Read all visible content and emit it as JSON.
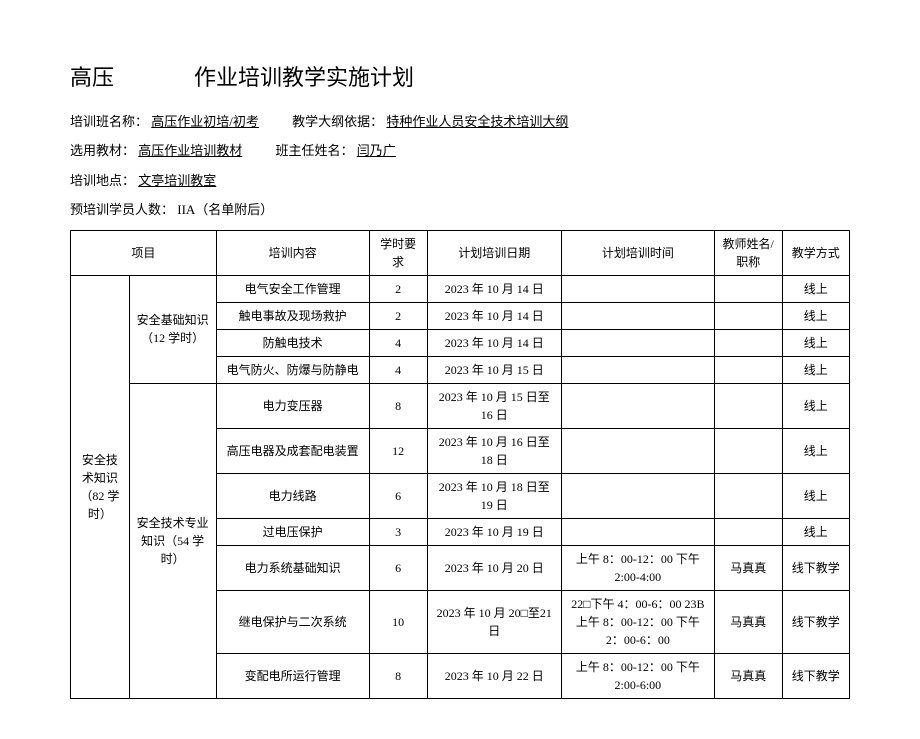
{
  "title": {
    "left": "高压",
    "main": "作业培训教学实施计划"
  },
  "info": {
    "class_label": "培训班名称：",
    "class_value": "高压作业初培/初考",
    "outline_label": "教学大纲依据：",
    "outline_value": "特种作业人员安全技术培训大纲",
    "material_label": "选用教材：",
    "material_value": "高压作业培训教材",
    "head_label": "班主任姓名：",
    "head_value": "闫乃广",
    "location_label": "培训地点：",
    "location_value": "文亭培训教室",
    "trainee_label": "预培训学员人数：",
    "trainee_value": "IIA（名单附后）"
  },
  "headers": {
    "project": "项目",
    "content": "培训内容",
    "hours": "学时要求",
    "date": "计划培训日期",
    "time": "计划培训时间",
    "teacher": "教师姓名/职称",
    "method": "教学方式"
  },
  "groups": {
    "main": "安全技术知识（82 学时）",
    "sub1": "安全基础知识（12 学时）",
    "sub2": "安全技术专业知识（54 学时）"
  },
  "rows": [
    {
      "content": "电气安全工作管理",
      "hours": "2",
      "date": "2023 年 10 月 14 日",
      "time": "",
      "teacher": "",
      "method": "线上"
    },
    {
      "content": "触电事故及现场救护",
      "hours": "2",
      "date": "2023 年 10 月 14 日",
      "time": "",
      "teacher": "",
      "method": "线上"
    },
    {
      "content": "防触电技术",
      "hours": "4",
      "date": "2023 年 10 月 14 日",
      "time": "",
      "teacher": "",
      "method": "线上"
    },
    {
      "content": "电气防火、防爆与防静电",
      "hours": "4",
      "date": "2023 年 10 月 15 日",
      "time": "",
      "teacher": "",
      "method": "线上"
    },
    {
      "content": "电力变压器",
      "hours": "8",
      "date": "2023 年 10 月 15 日至16 日",
      "time": "",
      "teacher": "",
      "method": "线上"
    },
    {
      "content": "高压电器及成套配电装置",
      "hours": "12",
      "date": "2023 年 10 月 16 日至18 日",
      "time": "",
      "teacher": "",
      "method": "线上"
    },
    {
      "content": "电力线路",
      "hours": "6",
      "date": "2023 年 10 月 18 日至19 日",
      "time": "",
      "teacher": "",
      "method": "线上"
    },
    {
      "content": "过电压保护",
      "hours": "3",
      "date": "2023 年 10 月 19 日",
      "time": "",
      "teacher": "",
      "method": "线上"
    },
    {
      "content": "电力系统基础知识",
      "hours": "6",
      "date": "2023 年 10 月 20 日",
      "time": "上午 8：00-12：00 下午2:00-4:00",
      "teacher": "马真真",
      "method": "线下教学"
    },
    {
      "content": "继电保护与二次系统",
      "hours": "10",
      "date": "2023 年 10 月 20□至21 日",
      "time": "22□下午 4：00-6：00 23B 上午 8：00-12：00 下午 2：00-6：00",
      "teacher": "马真真",
      "method": "线下教学"
    },
    {
      "content": "变配电所运行管理",
      "hours": "8",
      "date": "2023 年 10 月 22 日",
      "time": "上午 8：00-12：00 下午2:00-6:00",
      "teacher": "马真真",
      "method": "线下教学"
    }
  ]
}
